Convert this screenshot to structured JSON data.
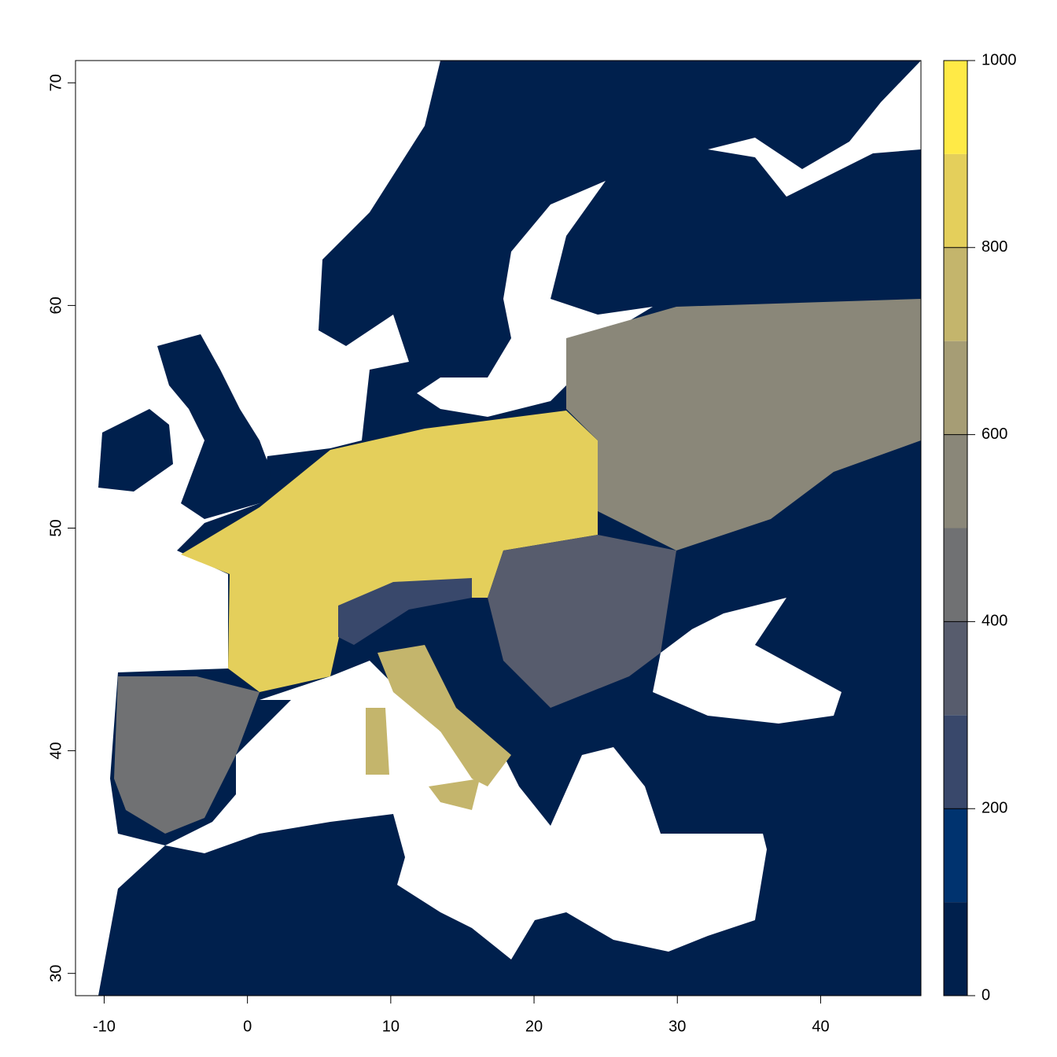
{
  "chart_data": {
    "type": "raster",
    "xlim": [
      -12,
      47
    ],
    "ylim": [
      29,
      71
    ],
    "xticks": [
      -10,
      0,
      10,
      20,
      30,
      40
    ],
    "yticks": [
      30,
      40,
      50,
      60,
      70
    ],
    "colorbar": {
      "lim": [
        0,
        1000
      ],
      "ticks": [
        0,
        200,
        400,
        600,
        800,
        1000
      ],
      "breaks": [
        0,
        100,
        200,
        300,
        400,
        500,
        600,
        700,
        800,
        900,
        1000
      ],
      "colors": [
        "#00204D",
        "#00336F",
        "#39486B",
        "#575C6D",
        "#707173",
        "#8A8779",
        "#A69D75",
        "#C4B56C",
        "#E4CF5B",
        "#FFEA46"
      ]
    }
  }
}
